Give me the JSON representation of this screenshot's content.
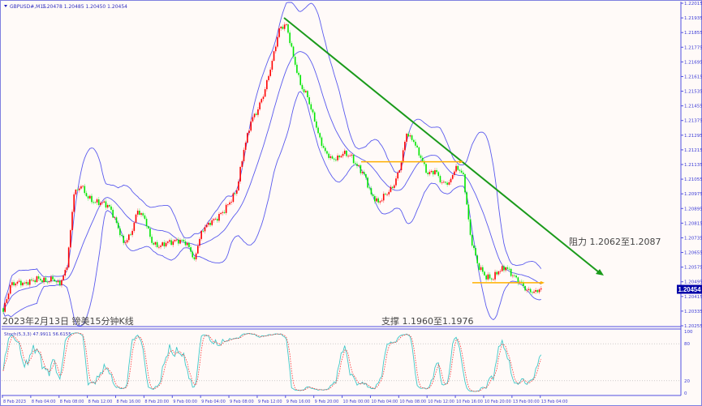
{
  "header": {
    "symbol": "GBPUSD#,M15",
    "ohlc": "1.20478 1.20485 1.20450 1.20454"
  },
  "annotations": {
    "title": "2023年2月13日 镑美15分钟K线",
    "resistance": "阻力 1.2062至1.2087",
    "support": "支撑 1.1960至1.1976"
  },
  "stoch": {
    "label": "Stoch(5,3,3) 47.9911 56.6155",
    "levels": [
      "100",
      "80",
      "20",
      "0"
    ]
  },
  "current_price": "1.20454",
  "colors": {
    "background": "#fffaf8",
    "bull_candle": "#ff0000",
    "bear_candle": "#00e600",
    "bollinger": "#5a5aee",
    "trendline": "#1a9a1a",
    "level_line": "#ffb000",
    "stoch_main": "#40c8c8",
    "stoch_signal": "#ff3030",
    "axis": "#5050e0"
  },
  "chart_data": [
    {
      "type": "candlestick",
      "title": "GBPUSD#,M15",
      "timeframe": "M15",
      "indicators": [
        "Bollinger Bands",
        "Stochastic(5,3,3)"
      ],
      "ylim": [
        1.20255,
        1.22015
      ],
      "y_ticks": [
        "1.22015",
        "1.21935",
        "1.21855",
        "1.21775",
        "1.21695",
        "1.21615",
        "1.21535",
        "1.21455",
        "1.21375",
        "1.21295",
        "1.21215",
        "1.21135",
        "1.21055",
        "1.20975",
        "1.20895",
        "1.20815",
        "1.20735",
        "1.20655",
        "1.20575",
        "1.20495",
        "1.20415",
        "1.20335",
        "1.20255"
      ],
      "x_ticks": [
        "8 Feb 2023",
        "8 Feb 04:00",
        "8 Feb 08:00",
        "8 Feb 12:00",
        "8 Feb 16:00",
        "8 Feb 20:00",
        "9 Feb 00:00",
        "9 Feb 04:00",
        "9 Feb 08:00",
        "9 Feb 12:00",
        "9 Feb 16:00",
        "9 Feb 20:00",
        "10 Feb 00:00",
        "10 Feb 04:00",
        "10 Feb 08:00",
        "10 Feb 12:00",
        "10 Feb 16:00",
        "10 Feb 20:00",
        "13 Feb 00:00",
        "13 Feb 04:00"
      ],
      "hourly_closes": [
        1.20331,
        1.20477,
        1.20495,
        1.20486,
        1.20503,
        1.20512,
        1.20495,
        1.20508,
        1.20477,
        1.20574,
        1.20972,
        1.21016,
        1.2095,
        1.20928,
        1.20928,
        1.20906,
        1.20817,
        1.20707,
        1.20751,
        1.20883,
        1.20839,
        1.20707,
        1.20685,
        1.20707,
        1.20716,
        1.20724,
        1.20707,
        1.20618,
        1.20773,
        1.20817,
        1.20839,
        1.20875,
        1.20928,
        1.20994,
        1.21215,
        1.2137,
        1.21436,
        1.21546,
        1.21701,
        1.21878,
        1.219,
        1.21723,
        1.21569,
        1.21502,
        1.2137,
        1.21237,
        1.21171,
        1.21158,
        1.21193,
        1.21184,
        1.21127,
        1.21082,
        1.20972,
        1.20928,
        1.20972,
        1.21007,
        1.21104,
        1.21303,
        1.21259,
        1.21171,
        1.21082,
        1.21104,
        1.21038,
        1.21038,
        1.21127,
        1.21082,
        1.20751,
        1.20596,
        1.2053,
        1.20508,
        1.20552,
        1.20574,
        1.2053,
        1.20495,
        1.2045,
        1.20441,
        1.20459
      ],
      "trendline": {
        "from": {
          "time": "9 Feb 14:00",
          "price": 1.219
        },
        "to": {
          "time": "13 Feb 06:00",
          "price": 1.2053
        }
      },
      "horizontal_levels": [
        1.2115,
        1.2049
      ]
    },
    {
      "type": "line",
      "title": "Stoch(5,3,3)",
      "ylim": [
        0,
        100
      ],
      "levels": [
        20,
        80
      ],
      "last_values": {
        "main": 47.9911,
        "signal": 56.6155
      }
    }
  ]
}
